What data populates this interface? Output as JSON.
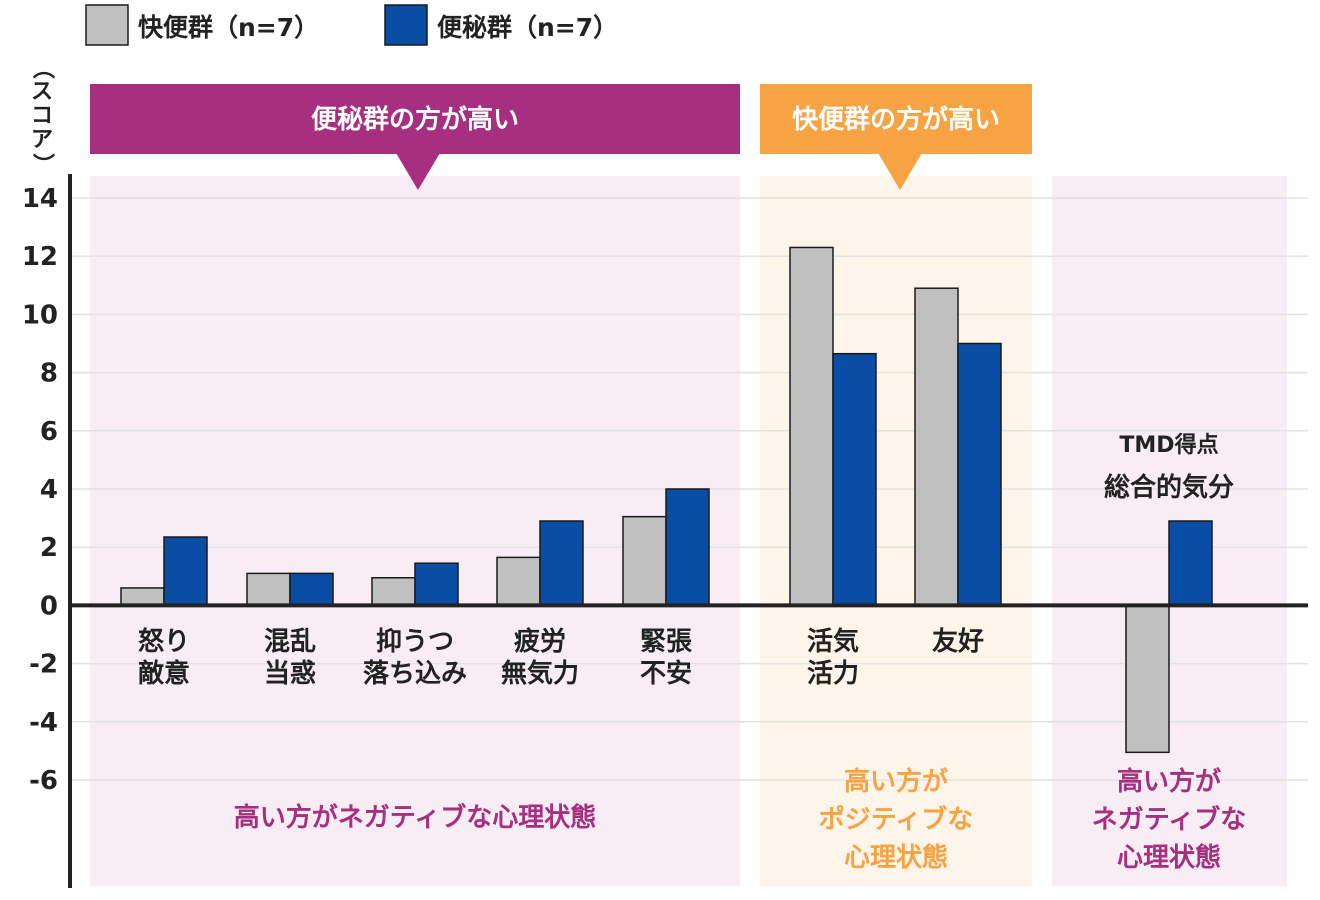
{
  "legend": {
    "items": [
      {
        "label": "快便群（n=7）",
        "color": "#c0c0c0"
      },
      {
        "label": "便秘群（n=7）",
        "color": "#0a4da5"
      }
    ]
  },
  "y_axis_unit": "（スコア）",
  "banners": [
    {
      "text": "便秘群の方が高い",
      "color": "#a62f80"
    },
    {
      "text": "快便群の方が高い",
      "color": "#f7a344"
    }
  ],
  "panel_notes": [
    {
      "lines": [
        "高い方がネガティブな心理状態"
      ],
      "color": "#a62f80"
    },
    {
      "lines": [
        "高い方が",
        "ポジティブな",
        "心理状態"
      ],
      "color": "#f7a344"
    },
    {
      "lines": [
        "高い方が",
        "ネガティブな",
        "心理状態"
      ],
      "color": "#a62f80"
    }
  ],
  "panel_colors": [
    "#f8edf4",
    "#fef5ea",
    "#f8edf4"
  ],
  "chart_data": {
    "type": "bar",
    "ylim": [
      -6,
      14
    ],
    "yticks": [
      14,
      12,
      10,
      8,
      6,
      4,
      2,
      0,
      -2,
      -4,
      -6
    ],
    "grid": true,
    "legend_position": "top-left",
    "categories": [
      [
        "怒り",
        "敵意"
      ],
      [
        "混乱",
        "当惑"
      ],
      [
        "抑うつ",
        "落ち込み"
      ],
      [
        "疲労",
        "無気力"
      ],
      [
        "緊張",
        "不安"
      ],
      [
        "活気",
        "活力"
      ],
      [
        "友好"
      ],
      [
        "TMD得点",
        "総合的気分"
      ]
    ],
    "series": [
      {
        "name": "快便群（n=7）",
        "color": "#c0c0c0",
        "values": [
          0.6,
          1.1,
          0.95,
          1.65,
          3.05,
          12.3,
          10.9,
          -5.05
        ]
      },
      {
        "name": "便秘群（n=7）",
        "color": "#0a4da5",
        "values": [
          2.35,
          1.1,
          1.45,
          2.9,
          4.0,
          8.65,
          9.0,
          2.9
        ]
      }
    ]
  }
}
